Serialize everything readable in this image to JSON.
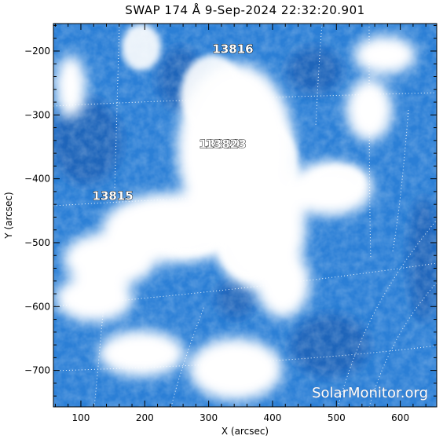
{
  "title": "SWAP 174 Å  9-Sep-2024 22:32:20.901",
  "axes": {
    "xlabel": "X (arcsec)",
    "ylabel": "Y (arcsec)",
    "xlim": [
      57,
      657
    ],
    "ylim": [
      -757,
      -157
    ],
    "xticks": [
      "100",
      "200",
      "300",
      "400",
      "500",
      "600"
    ],
    "yticks": [
      "-200",
      "-300",
      "-400",
      "-500",
      "-600",
      "-700"
    ]
  },
  "active_regions": [
    {
      "label": "13816",
      "x": 338,
      "y": -203
    },
    {
      "label": "13820",
      "x": 317,
      "y": -352
    },
    {
      "label": "13823",
      "x": 327,
      "y": -352
    },
    {
      "label": "13815",
      "x": 150,
      "y": -433
    }
  ],
  "watermark": "SolarMonitor.org",
  "colors": {
    "image_base": "#2b7fd6",
    "image_dark": "#1a5fb4",
    "image_bright": "#ffffff"
  }
}
